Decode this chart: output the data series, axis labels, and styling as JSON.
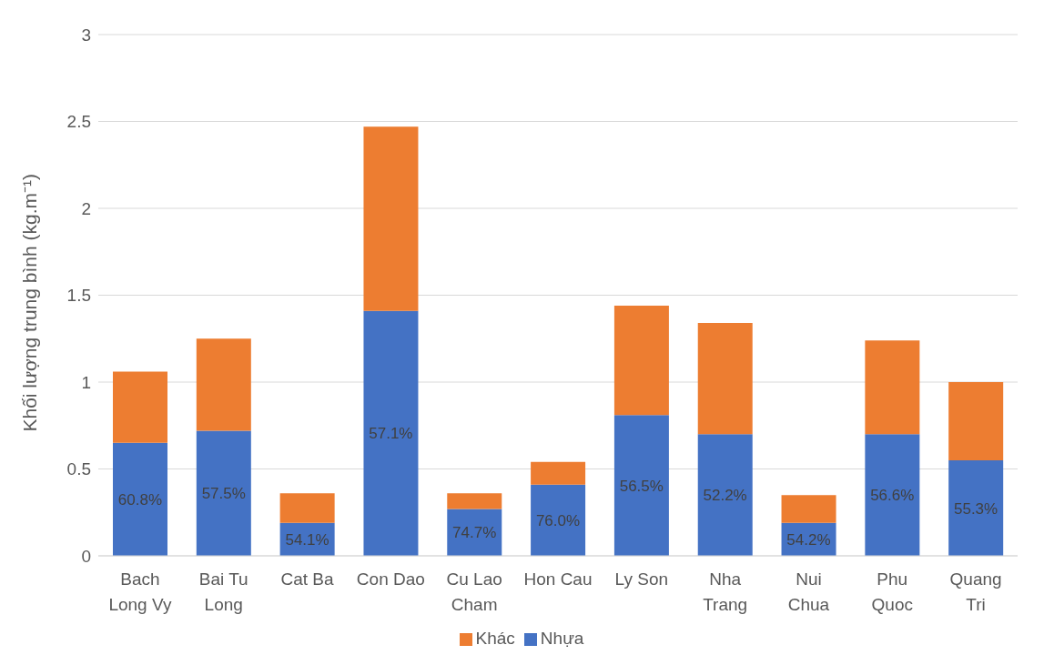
{
  "chart_data": {
    "type": "bar",
    "stacked": true,
    "ylabel": "Khối lượng trung bình (kg.m⁻¹)",
    "categories": [
      "Bach Long Vy",
      "Bai Tu Long",
      "Cat Ba",
      "Con Dao",
      "Cu Lao Cham",
      "Hon Cau",
      "Ly Son",
      "Nha Trang",
      "Nui Chua",
      "Phu Quoc",
      "Quang Tri"
    ],
    "series": [
      {
        "name": "Nhựa",
        "color": "#4472c4",
        "values": [
          0.65,
          0.72,
          0.19,
          1.41,
          0.27,
          0.41,
          0.81,
          0.7,
          0.19,
          0.7,
          0.55
        ]
      },
      {
        "name": "Khác",
        "color": "#ed7d31",
        "values": [
          0.41,
          0.53,
          0.17,
          1.06,
          0.09,
          0.13,
          0.63,
          0.64,
          0.16,
          0.54,
          0.45
        ]
      }
    ],
    "annotations": [
      "60.8%",
      "57.5%",
      "54.1%",
      "57.1%",
      "74.7%",
      "76.0%",
      "56.5%",
      "52.2%",
      "54.2%",
      "56.6%",
      "55.3%"
    ],
    "ylim": [
      0,
      3
    ],
    "yticks": [
      0,
      0.5,
      1,
      1.5,
      2,
      2.5,
      3
    ],
    "grid": "y",
    "legend": "bottom"
  }
}
